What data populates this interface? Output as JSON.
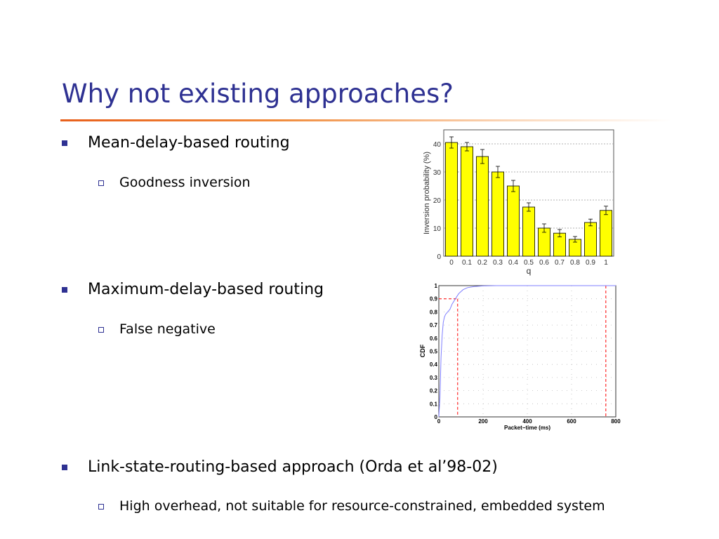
{
  "title": "Why not existing approaches?",
  "bullets": [
    {
      "label": "Mean-delay-based routing",
      "sub": "Goodness inversion"
    },
    {
      "label": "Maximum-delay-based routing",
      "sub": "False negative"
    },
    {
      "label": "Link-state-routing-based approach (Orda et al’98-02)",
      "sub": "High overhead, not suitable for resource-constrained, embedded system"
    }
  ],
  "colors": {
    "title": "#2e3192",
    "bullet": "#2e3192",
    "rule": "#e8601c",
    "bar": "#ffff00",
    "cdf_line": "#7f7fff",
    "threshold": "#ff0000"
  },
  "chart_data": [
    {
      "type": "bar",
      "title": "",
      "xlabel": "q",
      "ylabel": "Inversion probability (%)",
      "categories": [
        "0",
        "0.1",
        "0.2",
        "0.3",
        "0.4",
        "0.5",
        "0.6",
        "0.7",
        "0.8",
        "0.9",
        "1"
      ],
      "values": [
        40.5,
        39,
        35.5,
        30,
        25,
        17.5,
        10,
        8.2,
        6,
        12,
        16.3
      ],
      "errors": [
        2,
        1.5,
        2.5,
        2,
        2,
        1.5,
        1.5,
        1.3,
        1,
        1.2,
        1.5
      ],
      "ylim": [
        0,
        45
      ],
      "yticks": [
        "0",
        "10",
        "20",
        "30",
        "40"
      ],
      "grid": true
    },
    {
      "type": "line",
      "title": "",
      "xlabel": "Packet−time (ms)",
      "ylabel": "CDF",
      "xlim": [
        0,
        800
      ],
      "ylim": [
        0,
        1
      ],
      "xticks": [
        "0",
        "200",
        "400",
        "600",
        "800"
      ],
      "yticks": [
        "0",
        "0.1",
        "0.2",
        "0.3",
        "0.4",
        "0.5",
        "0.6",
        "0.7",
        "0.8",
        "0.9",
        "1"
      ],
      "series": [
        {
          "x": [
            0,
            5,
            10,
            15,
            20,
            25,
            30,
            40,
            50,
            60,
            75,
            90,
            110,
            130,
            160,
            200,
            260,
            800
          ],
          "y": [
            0,
            0.15,
            0.45,
            0.62,
            0.72,
            0.76,
            0.78,
            0.8,
            0.82,
            0.86,
            0.9,
            0.94,
            0.97,
            0.985,
            0.993,
            0.998,
            1.0,
            1.0
          ]
        }
      ],
      "thresholds": [
        {
          "x": 85,
          "y": 0.9
        },
        {
          "x": 755
        }
      ],
      "grid": true
    }
  ]
}
